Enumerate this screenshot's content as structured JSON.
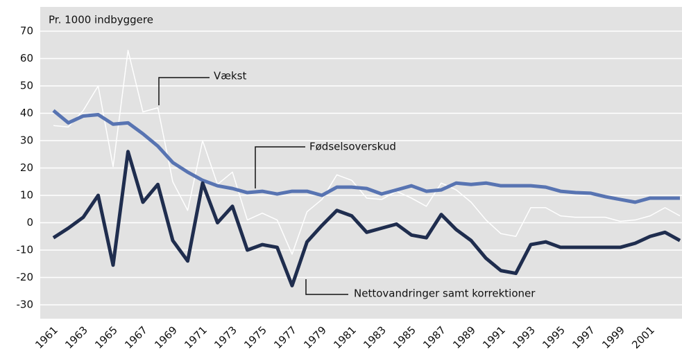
{
  "chart_data": {
    "type": "line",
    "y_label": "Pr. 1000 indbyggere",
    "categories": [
      "1961",
      null,
      "1963",
      null,
      "1965",
      null,
      "1967",
      null,
      "1969",
      null,
      "1971",
      null,
      "1973",
      null,
      "1975",
      null,
      "1977",
      null,
      "1979",
      null,
      "1981",
      null,
      "1983",
      null,
      "1985",
      null,
      "1987",
      null,
      "1989",
      null,
      "1991",
      null,
      "1993",
      null,
      "1995",
      null,
      "1997",
      null,
      "1999",
      null,
      "2001",
      null,
      null
    ],
    "series": [
      {
        "name": "Vækst",
        "color": "#ffffff",
        "width": 1.5,
        "values": [
          35.5,
          35,
          41,
          50,
          20.5,
          63,
          40.5,
          42,
          15,
          4.5,
          30,
          14,
          18.5,
          1,
          3.5,
          1,
          -11.5,
          4,
          8.5,
          17.5,
          15.5,
          9,
          8.5,
          11.5,
          9,
          6,
          14.5,
          12,
          7.5,
          1,
          -4,
          -5,
          5.5,
          5.5,
          2.5,
          2,
          2,
          2,
          0.5,
          1,
          2.5,
          5.5,
          2.5
        ]
      },
      {
        "name": "Fødselsoverskud",
        "color": "#5874b2",
        "width": 5,
        "values": [
          41,
          36.5,
          39,
          39.5,
          36,
          36.5,
          32.5,
          28,
          22,
          18.5,
          15.5,
          13.5,
          12.5,
          11,
          11.5,
          10.5,
          11.5,
          11.5,
          10,
          13,
          13,
          12.5,
          10.5,
          12,
          13.5,
          11.5,
          12,
          14.5,
          14,
          14.5,
          13.5,
          13.5,
          13.5,
          13,
          11.5,
          11,
          10.8,
          9.5,
          8.5,
          7.5,
          9,
          9,
          9
        ]
      },
      {
        "name": "Nettovandringer samt korrektioner",
        "color": "#1f2d4e",
        "width": 5,
        "values": [
          -5.5,
          -2,
          2,
          10,
          -15.5,
          26,
          7.5,
          14,
          -6.5,
          -14,
          14.5,
          0,
          6,
          -10,
          -8,
          -9,
          -23,
          -7,
          -1,
          4.5,
          2.5,
          -3.5,
          -2,
          -0.5,
          -4.5,
          -5.5,
          3,
          -2.5,
          -6.5,
          -13,
          -17.5,
          -18.5,
          -8,
          -7,
          -9,
          -9,
          -9,
          -9,
          -9,
          -7.5,
          -5,
          -3.5,
          -6.5
        ]
      }
    ],
    "ylim": [
      -30,
      70
    ],
    "yticks": [
      -30,
      -20,
      -10,
      0,
      10,
      20,
      30,
      40,
      50,
      60,
      70
    ],
    "grid": true
  }
}
